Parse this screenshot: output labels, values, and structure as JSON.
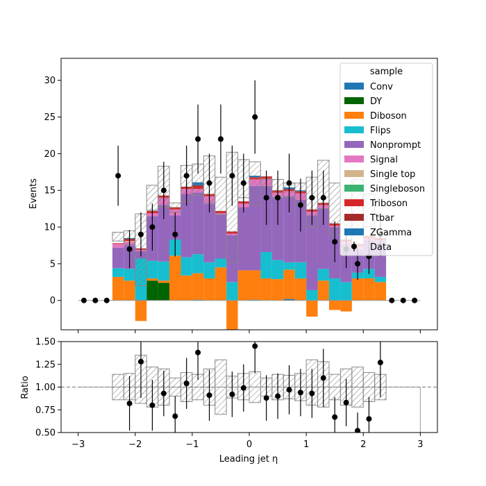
{
  "chart_data": [
    {
      "type": "bar",
      "subtype": "stacked-histogram-with-data-points",
      "xlabel": "",
      "ylabel": "Events",
      "xlim": [
        -3.3,
        3.3
      ],
      "ylim": [
        -4,
        33
      ],
      "y_ticks": [
        0,
        5,
        10,
        15,
        20,
        25,
        30
      ],
      "x_ticks": [
        -3,
        -2,
        -1,
        0,
        1,
        2,
        3
      ],
      "bin_edges": [
        -2.4,
        -2.2,
        -2.0,
        -1.8,
        -1.6,
        -1.4,
        -1.2,
        -1.0,
        -0.8,
        -0.6,
        -0.4,
        -0.2,
        0.0,
        0.2,
        0.4,
        0.6,
        0.8,
        1.0,
        1.2,
        1.4,
        1.6,
        1.8,
        2.0,
        2.2,
        2.4
      ],
      "legend_title": "sample",
      "legend_position": "top-right",
      "series": [
        {
          "name": "Conv",
          "color": "#1f77b4",
          "values": [
            0,
            0,
            0.1,
            0,
            0,
            0,
            0,
            0.1,
            0,
            0,
            0,
            0,
            0.1,
            0,
            0,
            0.2,
            0,
            0,
            0,
            0,
            0,
            0,
            0,
            0
          ]
        },
        {
          "name": "DY",
          "color": "#006400",
          "values": [
            0,
            0,
            0,
            2.7,
            2.4,
            0,
            0,
            0,
            0,
            0,
            0,
            0,
            0,
            0,
            0,
            0,
            0,
            0,
            0,
            0,
            0,
            0,
            0,
            0
          ]
        },
        {
          "name": "Diboson",
          "color": "#ff7f0e",
          "values": [
            3.2,
            2.7,
            -2.8,
            0.3,
            0.3,
            6.1,
            3.4,
            3.6,
            3.0,
            4.5,
            -4.0,
            4.1,
            4.0,
            3.0,
            2.9,
            4.0,
            3.0,
            -2.2,
            2.7,
            -1.3,
            -1.5,
            3.0,
            3.0,
            2.5
          ]
        },
        {
          "name": "Flips",
          "color": "#17becf",
          "values": [
            1.2,
            1.6,
            5.6,
            2.4,
            2.6,
            2.2,
            2.5,
            2.6,
            2.2,
            1.2,
            2.5,
            0,
            0,
            3.6,
            2.6,
            1.0,
            2.2,
            1.4,
            1.6,
            3.0,
            2.5,
            0.8,
            1.3,
            0.7
          ]
        },
        {
          "name": "Nonprompt",
          "color": "#9467bd",
          "values": [
            2.8,
            3.2,
            1.0,
            6.1,
            7.7,
            3.3,
            8.6,
            8.4,
            8.0,
            6.0,
            6.4,
            8.6,
            11.5,
            9.0,
            8.6,
            9.0,
            8.5,
            10.2,
            8.2,
            7.0,
            5.2,
            3.2,
            3.9,
            4.7
          ]
        },
        {
          "name": "Signal",
          "color": "#e377c2",
          "values": [
            0.5,
            0.5,
            0.2,
            0.4,
            1.0,
            0.8,
            0.7,
            0.5,
            1.0,
            0.2,
            0.2,
            0.5,
            0.9,
            1.0,
            0.6,
            0.7,
            0.9,
            0.5,
            0.5,
            0.2,
            0.3,
            0.4,
            0.3,
            0.3
          ]
        },
        {
          "name": "Single top",
          "color": "#d2b48c",
          "values": [
            0,
            0.1,
            0,
            0,
            0,
            0,
            0,
            0,
            0,
            0,
            0,
            0,
            0,
            0,
            0,
            0,
            0,
            0,
            0,
            0,
            0,
            0,
            0,
            0
          ]
        },
        {
          "name": "Singleboson",
          "color": "#3cb371",
          "values": [
            0,
            0,
            0,
            0,
            0,
            0,
            0,
            0,
            0,
            0,
            0,
            0,
            0,
            0,
            0,
            0,
            0,
            0,
            0,
            0,
            0,
            0,
            0,
            0
          ]
        },
        {
          "name": "Triboson",
          "color": "#d62728",
          "values": [
            0.1,
            0.2,
            0.1,
            0.2,
            0.2,
            0.2,
            0.2,
            0.3,
            0.2,
            0.2,
            0.2,
            0.2,
            0.2,
            0.2,
            0.2,
            0.2,
            0.2,
            0.2,
            0.2,
            0.2,
            0.2,
            0.2,
            0.2,
            0.2
          ]
        },
        {
          "name": "Ttbar",
          "color": "#a52a2a",
          "values": [
            0,
            0.1,
            0.1,
            0.1,
            0.1,
            0.1,
            0.1,
            0.2,
            0.1,
            0.1,
            0.1,
            0.1,
            0.1,
            0.1,
            0.1,
            0.1,
            0.1,
            0.1,
            0.1,
            0.1,
            0.1,
            0.1,
            0.1,
            0.1
          ]
        },
        {
          "name": "ZGamma",
          "color": "#1f77b4",
          "values": [
            0,
            0.1,
            0,
            0,
            0,
            0,
            0,
            0.4,
            0,
            0,
            0,
            0,
            0.2,
            0,
            0,
            0.2,
            0.1,
            0,
            0,
            0,
            0,
            0,
            0,
            0
          ]
        }
      ],
      "uncertainty_band": {
        "name": "",
        "low": [
          8.1,
          7.6,
          2.0,
          12.3,
          12.7,
          12.0,
          13.5,
          14.3,
          13.3,
          11.7,
          5.2,
          14.0,
          13.0,
          15.5,
          14.0,
          14.0,
          13.0,
          10.0,
          12.5,
          9.0,
          7.0,
          9.5,
          10.0,
          8.0
        ],
        "high": [
          9.3,
          9.5,
          11.8,
          15.7,
          18.3,
          13.3,
          18.4,
          18.6,
          19.7,
          16.8,
          20.2,
          19.2,
          18.9,
          16.5,
          16.5,
          16.0,
          16.0,
          16.8,
          19.1,
          16.0,
          15.0,
          16.5,
          14.5,
          9.5
        ]
      },
      "data_points": {
        "name": "Data",
        "x": [
          -2.3,
          -2.1,
          -1.9,
          -1.7,
          -1.5,
          -1.3,
          -1.1,
          -0.9,
          -0.7,
          -0.5,
          -0.3,
          -0.1,
          0.1,
          0.3,
          0.5,
          0.7,
          0.9,
          1.1,
          1.3,
          1.5,
          1.7,
          1.9,
          2.1,
          2.3
        ],
        "y": [
          17,
          7,
          9,
          10,
          15,
          9,
          17,
          22,
          16,
          22,
          17,
          16,
          25,
          14,
          14,
          16,
          13,
          14,
          14,
          8,
          7,
          5,
          6,
          9
        ],
        "yerr": [
          4.1,
          2.6,
          3.0,
          3.2,
          3.9,
          3.0,
          4.1,
          4.7,
          4.0,
          4.7,
          4.1,
          4.0,
          5.0,
          3.7,
          3.7,
          4.0,
          3.6,
          3.7,
          3.7,
          2.8,
          2.6,
          2.2,
          2.4,
          3.0
        ]
      },
      "zero_points": {
        "x": [
          -2.9,
          -2.7,
          -2.5,
          2.5,
          2.7,
          2.9
        ],
        "y": [
          0,
          0,
          0,
          0,
          0,
          0
        ]
      }
    },
    {
      "type": "scatter",
      "subtype": "ratio-panel",
      "xlabel": "Leading jet  η",
      "ylabel": "Ratio",
      "xlim": [
        -3.3,
        3.3
      ],
      "ylim": [
        0.5,
        1.5
      ],
      "y_ticks": [
        0.5,
        0.75,
        1.0,
        1.25,
        1.5
      ],
      "y_tick_labels": [
        "0.50",
        "0.75",
        "1.00",
        "1.25",
        "1.50"
      ],
      "x_ticks": [
        -3,
        -2,
        -1,
        0,
        1,
        2,
        3
      ],
      "reference_line": 1.0,
      "band_low": [
        0.86,
        0.86,
        0.82,
        0.78,
        0.8,
        0.9,
        0.84,
        0.86,
        0.8,
        0.7,
        0.88,
        0.86,
        0.83,
        0.9,
        0.86,
        0.87,
        0.85,
        0.8,
        0.78,
        0.86,
        0.8,
        0.78,
        0.84,
        0.86
      ],
      "band_high": [
        1.14,
        1.15,
        1.35,
        1.22,
        1.2,
        1.1,
        1.16,
        1.14,
        1.2,
        1.3,
        1.12,
        1.15,
        1.17,
        1.1,
        1.14,
        1.13,
        1.15,
        1.3,
        1.28,
        1.14,
        1.2,
        1.22,
        1.16,
        1.14
      ],
      "x": [
        -2.1,
        -1.9,
        -1.7,
        -1.5,
        -1.3,
        -1.1,
        -0.9,
        -0.7,
        -0.3,
        -0.1,
        0.1,
        0.3,
        0.5,
        0.7,
        0.9,
        1.1,
        1.3,
        1.5,
        1.7,
        1.9,
        2.1,
        2.3
      ],
      "y": [
        0.82,
        1.28,
        0.8,
        0.93,
        0.68,
        1.04,
        1.38,
        0.91,
        0.92,
        0.99,
        1.45,
        0.88,
        0.9,
        0.97,
        0.94,
        0.93,
        1.1,
        0.67,
        0.83,
        0.52,
        0.65,
        1.27
      ],
      "yerr": [
        0.3,
        0.4,
        0.28,
        0.25,
        0.22,
        0.28,
        0.3,
        0.28,
        0.25,
        0.26,
        0.3,
        0.25,
        0.25,
        0.27,
        0.26,
        0.27,
        0.32,
        0.22,
        0.26,
        0.2,
        0.24,
        0.38
      ]
    }
  ]
}
